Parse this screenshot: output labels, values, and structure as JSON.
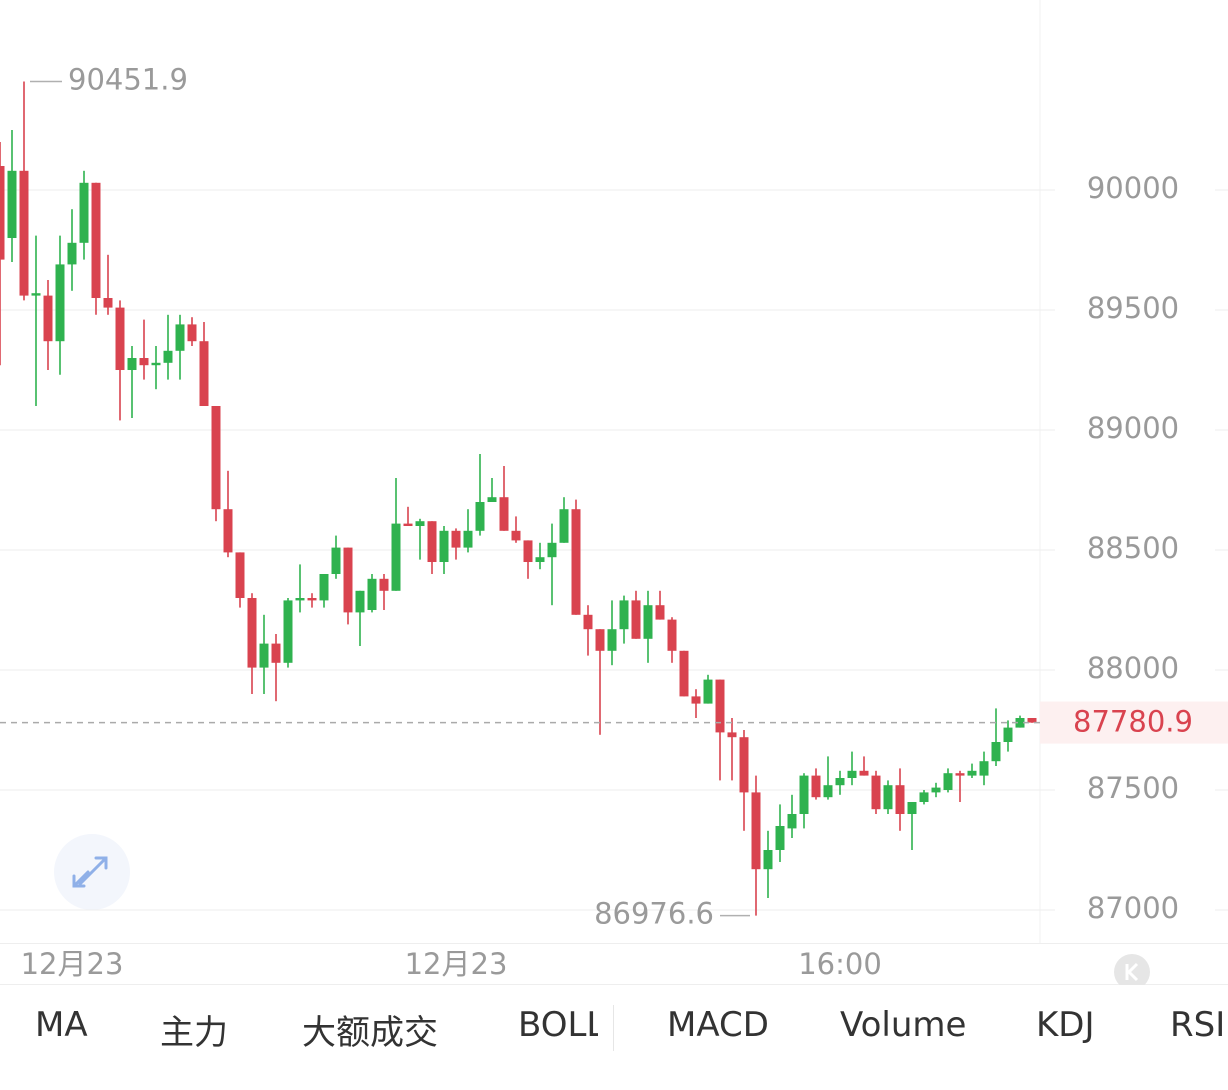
{
  "chart_data": {
    "type": "candlestick",
    "categories": [
      null,
      null,
      null,
      null,
      null,
      null,
      "12月23",
      null,
      null,
      null,
      null,
      null,
      null,
      null,
      null,
      null,
      null,
      null,
      null,
      null,
      null,
      null,
      null,
      null,
      null,
      null,
      null,
      null,
      null,
      null,
      null,
      null,
      null,
      null,
      null,
      null,
      null,
      null,
      "12月23",
      null,
      null,
      null,
      null,
      null,
      null,
      null,
      null,
      null,
      null,
      null,
      null,
      null,
      null,
      null,
      null,
      null,
      null,
      null,
      null,
      null,
      null,
      null,
      null,
      null,
      null,
      null,
      null,
      null,
      null,
      null,
      "16:00",
      null,
      null,
      null,
      null,
      null,
      null,
      null,
      null,
      null,
      null,
      null,
      null,
      null,
      null,
      null,
      null
    ],
    "open": [
      90100,
      89800,
      90080,
      89560,
      89560,
      89370,
      89690,
      89780,
      90030,
      89550,
      89510,
      89250,
      89300,
      89270,
      89280,
      89330,
      89440,
      89370,
      89100,
      88670,
      88490,
      88300,
      88010,
      88110,
      88030,
      88290,
      88300,
      88290,
      88400,
      88510,
      88240,
      88250,
      88380,
      88330,
      88610,
      88600,
      88620,
      88450,
      88580,
      88510,
      88580,
      88700,
      88720,
      88580,
      88540,
      88450,
      88470,
      88530,
      88670,
      88230,
      88170,
      88080,
      88170,
      88290,
      88130,
      88270,
      88210,
      88080,
      87890,
      87860,
      87960,
      87740,
      87720,
      87490,
      87170,
      87250,
      87340,
      87400,
      87560,
      87470,
      87520,
      87550,
      87580,
      87560,
      87420,
      87520,
      87400,
      87450,
      87490,
      87500,
      87570,
      87560,
      87560,
      87620,
      87700,
      87760,
      87800
    ],
    "high": [
      90200,
      90250,
      90451.9,
      89810,
      89625,
      89810,
      89920,
      90080,
      90030,
      89730,
      89540,
      89350,
      89460,
      89350,
      89480,
      89480,
      89470,
      89450,
      89100,
      88830,
      88490,
      88320,
      88230,
      88150,
      88300,
      88440,
      88320,
      88400,
      88560,
      88510,
      88330,
      88400,
      88400,
      88800,
      88680,
      88630,
      88620,
      88600,
      88590,
      88670,
      88900,
      88800,
      88850,
      88640,
      88540,
      88530,
      88610,
      88720,
      88710,
      88270,
      88170,
      88290,
      88310,
      88330,
      88330,
      88330,
      88220,
      88080,
      87920,
      87980,
      87960,
      87800,
      87750,
      87560,
      87330,
      87440,
      87480,
      87570,
      87590,
      87640,
      87580,
      87660,
      87640,
      87580,
      87540,
      87590,
      87450,
      87500,
      87530,
      87590,
      87580,
      87610,
      87660,
      87840,
      87790,
      87810,
      87800
    ],
    "low": [
      89270,
      89700,
      89540,
      89100,
      89250,
      89230,
      89580,
      89710,
      89480,
      89480,
      89040,
      89050,
      89210,
      89170,
      89210,
      89210,
      89350,
      89100,
      88620,
      88470,
      88260,
      87900,
      87900,
      87870,
      88010,
      88240,
      88260,
      88260,
      88380,
      88190,
      88100,
      88240,
      88250,
      88330,
      88600,
      88460,
      88400,
      88400,
      88460,
      88490,
      88560,
      88700,
      88580,
      88530,
      88380,
      88420,
      88270,
      88530,
      88230,
      88060,
      87730,
      88020,
      88110,
      88130,
      88030,
      88210,
      88030,
      87890,
      87800,
      87860,
      87540,
      87540,
      87330,
      86976.6,
      87050,
      87200,
      87300,
      87340,
      87460,
      87460,
      87480,
      87520,
      87560,
      87400,
      87400,
      87330,
      87250,
      87440,
      87470,
      87490,
      87450,
      87550,
      87520,
      87600,
      87660,
      87760,
      87780
    ],
    "close": [
      89710,
      90080,
      89560,
      89570,
      89370,
      89690,
      89780,
      90030,
      89550,
      89510,
      89250,
      89300,
      89270,
      89280,
      89330,
      89440,
      89370,
      89100,
      88670,
      88490,
      88300,
      88010,
      88110,
      88030,
      88290,
      88300,
      88290,
      88400,
      88510,
      88240,
      88330,
      88380,
      88330,
      88610,
      88600,
      88620,
      88450,
      88580,
      88510,
      88580,
      88700,
      88720,
      88580,
      88540,
      88450,
      88470,
      88530,
      88670,
      88230,
      88170,
      88080,
      88170,
      88290,
      88130,
      88270,
      88210,
      88080,
      87890,
      87860,
      87960,
      87740,
      87720,
      87490,
      87170,
      87250,
      87350,
      87400,
      87560,
      87470,
      87520,
      87550,
      87580,
      87560,
      87420,
      87520,
      87400,
      87450,
      87490,
      87510,
      87570,
      87560,
      87580,
      87620,
      87700,
      87760,
      87800,
      87780.9
    ],
    "up_color": "#2fb24f",
    "down_color": "#d9434f",
    "ylim": [
      86862.5,
      90791.7
    ],
    "yticks": [
      87000,
      87500,
      88000,
      88500,
      89000,
      89500,
      90000
    ],
    "grid": true,
    "max_label": 90451.9,
    "min_label": 86976.6,
    "last_price": 87780.9
  },
  "tabs": [
    "MA",
    "主力",
    "大额成交",
    "BOLL",
    "MACD",
    "Volume",
    "KDJ",
    "RSI"
  ]
}
